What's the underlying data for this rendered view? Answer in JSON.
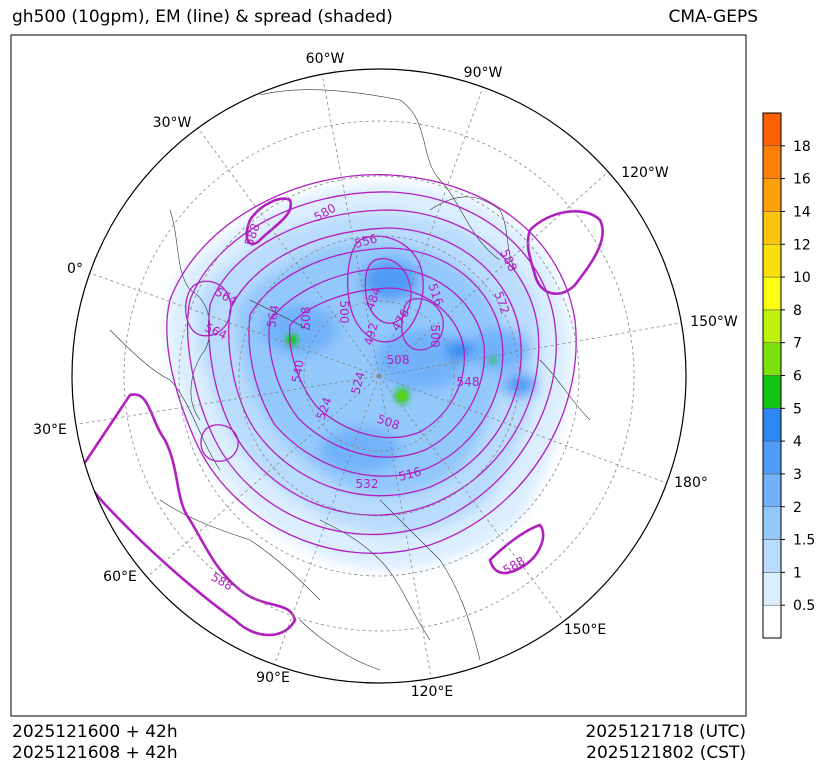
{
  "header": {
    "title": "gh500 (10gpm), EM (line) & spread (shaded)",
    "model": "CMA-GEPS"
  },
  "footer": {
    "init_utc": "2025121600 + 42h",
    "init_cst": "2025121608 + 42h",
    "valid_utc": "2025121718 (UTC)",
    "valid_cst": "2025121802 (CST)"
  },
  "chart_data": {
    "type": "heatmap",
    "title": "gh500 (10gpm), EM (line) & spread (shaded)",
    "projection": "north-polar-stereographic",
    "field_line": "500 hPa geopotential height ensemble mean (dagpm)",
    "field_shaded": "ensemble spread (dagpm)",
    "longitude_labels": [
      "60°W",
      "90°W",
      "30°W",
      "120°W",
      "0°",
      "150°W",
      "30°E",
      "180°",
      "60°E",
      "150°E",
      "90°E",
      "120°E"
    ],
    "contour_labels": [
      "588",
      "580",
      "556",
      "588",
      "572",
      "564",
      "564",
      "564",
      "508",
      "500",
      "484",
      "516",
      "492",
      "476",
      "500",
      "508",
      "540",
      "524",
      "548",
      "524",
      "508",
      "516",
      "532",
      "588",
      "588"
    ],
    "colorbar": {
      "ticks": [
        "0.5",
        "1",
        "1.5",
        "2",
        "3",
        "4",
        "5",
        "6",
        "7",
        "8",
        "10",
        "12",
        "14",
        "16",
        "18"
      ],
      "colors": [
        "#ffffff",
        "#dbeefe",
        "#b9dcfd",
        "#93c8fb",
        "#71b2f9",
        "#4f9bf5",
        "#2d87f2",
        "#13c516",
        "#7de10e",
        "#c1f00d",
        "#fdfe12",
        "#f9df0a",
        "#fbc20e",
        "#fca00a",
        "#fc8007",
        "#fd6104"
      ]
    }
  }
}
